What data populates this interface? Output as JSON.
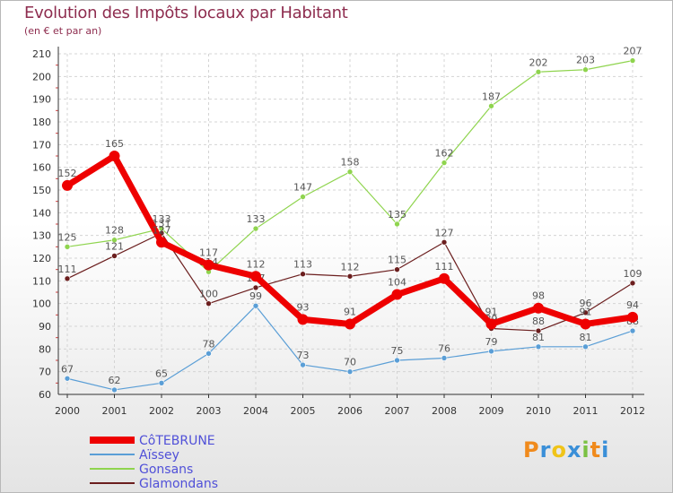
{
  "header": {
    "title": "Evolution des Impôts locaux par Habitant",
    "subtitle": "(en € et par an)"
  },
  "logo": {
    "text": "Proxiti"
  },
  "chart_data": {
    "type": "line",
    "title": "Evolution des Impôts locaux par Habitant",
    "subtitle": "(en € et par an)",
    "xlabel": "",
    "ylabel": "",
    "x": [
      "2000",
      "2001",
      "2002",
      "2003",
      "2004",
      "2005",
      "2006",
      "2007",
      "2008",
      "2009",
      "2010",
      "2011",
      "2012"
    ],
    "yticks": [
      "60",
      "70",
      "80",
      "90",
      "100",
      "110",
      "120",
      "130",
      "140",
      "150",
      "160",
      "170",
      "180",
      "190",
      "200",
      "210"
    ],
    "ylim": [
      60,
      210
    ],
    "grid": true,
    "legend_position": "bottom-left",
    "series": [
      {
        "name": "Gonsans",
        "color": "#8fd44e",
        "width": 1.2,
        "values": [
          125,
          128,
          133,
          114,
          133,
          147,
          158,
          135,
          162,
          187,
          202,
          203,
          207
        ],
        "labels": [
          "125",
          "128",
          "133",
          "114",
          "133",
          "147",
          "158",
          "135",
          "162",
          "187",
          "202",
          "203",
          "207"
        ]
      },
      {
        "name": "Glamondans",
        "color": "#6b1e1e",
        "width": 1.2,
        "values": [
          111,
          121,
          131,
          100,
          107,
          113,
          112,
          115,
          127,
          89,
          88,
          96,
          109
        ],
        "labels": [
          "111",
          "121",
          "131",
          "100",
          "107",
          "113",
          "112",
          "115",
          "127",
          "89",
          "88",
          "96",
          "109"
        ]
      },
      {
        "name": "Aïssey",
        "color": "#5a9ed6",
        "width": 1.2,
        "values": [
          67,
          62,
          65,
          78,
          99,
          73,
          70,
          75,
          76,
          79,
          81,
          81,
          88
        ],
        "labels": [
          "67",
          "62",
          "65",
          "78",
          "99",
          "73",
          "70",
          "75",
          "76",
          "79",
          "81",
          "81",
          "88"
        ]
      },
      {
        "name": "CôTEBRUNE",
        "color": "#ee0000",
        "width": 7,
        "values": [
          152,
          165,
          127,
          117,
          112,
          93,
          91,
          104,
          111,
          91,
          98,
          91,
          94
        ],
        "labels": [
          "152",
          "165",
          "127",
          "117",
          "112",
          "93",
          "91",
          "104",
          "111",
          "91",
          "98",
          "91",
          "94"
        ]
      }
    ],
    "legend": [
      {
        "name": "CôTEBRUNE",
        "color": "#ee0000"
      },
      {
        "name": "Aïssey",
        "color": "#5a9ed6"
      },
      {
        "name": "Gonsans",
        "color": "#8fd44e"
      },
      {
        "name": "Glamondans",
        "color": "#6b1e1e"
      }
    ]
  }
}
